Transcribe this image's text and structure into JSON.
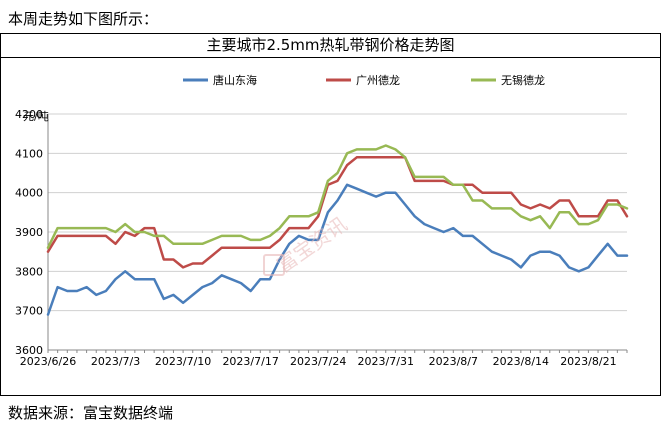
{
  "intro_text": "本周走势如下图所示：",
  "source_text": "数据来源：富宝数据终端",
  "watermark_text": "富宝资讯",
  "chart_data": {
    "type": "line",
    "title": "主要城市2.5mm热轧带钢价格走势图",
    "unit_label": "元/吨",
    "ylim": [
      3600,
      4200
    ],
    "yticks": [
      3600,
      3700,
      3800,
      3900,
      4000,
      4100,
      4200
    ],
    "grid": true,
    "legend_position": "top",
    "x_tick_labels": [
      "2023/6/26",
      "2023/7/3",
      "2023/7/10",
      "2023/7/17",
      "2023/7/24",
      "2023/7/31",
      "2023/8/7",
      "2023/8/14",
      "2023/8/21"
    ],
    "x_tick_positions": [
      0,
      7,
      14,
      21,
      28,
      35,
      42,
      49,
      56
    ],
    "x": [
      0,
      1,
      2,
      3,
      4,
      5,
      6,
      7,
      8,
      9,
      10,
      11,
      12,
      13,
      14,
      15,
      16,
      17,
      18,
      19,
      20,
      21,
      22,
      23,
      24,
      25,
      26,
      27,
      28,
      29,
      30,
      31,
      32,
      33,
      34,
      35,
      36,
      37,
      38,
      39,
      40,
      41,
      42,
      43,
      44,
      45,
      46,
      47,
      48,
      49,
      50,
      51,
      52,
      53,
      54,
      55,
      56,
      57,
      58,
      59,
      60
    ],
    "series": [
      {
        "name": "唐山东海",
        "color": "#4a7ebb",
        "values": [
          3690,
          3760,
          3750,
          3750,
          3760,
          3740,
          3750,
          3780,
          3800,
          3780,
          3780,
          3780,
          3730,
          3740,
          3720,
          3740,
          3760,
          3770,
          3790,
          3780,
          3770,
          3750,
          3780,
          3780,
          3830,
          3870,
          3890,
          3880,
          3880,
          3950,
          3980,
          4020,
          4010,
          4000,
          3990,
          4000,
          4000,
          3970,
          3940,
          3920,
          3910,
          3900,
          3910,
          3890,
          3890,
          3870,
          3850,
          3840,
          3830,
          3810,
          3840,
          3850,
          3850,
          3840,
          3810,
          3800,
          3810,
          3840,
          3870,
          3840,
          3840
        ]
      },
      {
        "name": "广州德龙",
        "color": "#be4b48",
        "values": [
          3850,
          3890,
          3890,
          3890,
          3890,
          3890,
          3890,
          3870,
          3900,
          3890,
          3910,
          3910,
          3830,
          3830,
          3810,
          3820,
          3820,
          3840,
          3860,
          3860,
          3860,
          3860,
          3860,
          3860,
          3880,
          3910,
          3910,
          3910,
          3940,
          4020,
          4030,
          4070,
          4090,
          4090,
          4090,
          4090,
          4090,
          4090,
          4030,
          4030,
          4030,
          4030,
          4020,
          4020,
          4020,
          4000,
          4000,
          4000,
          4000,
          3970,
          3960,
          3970,
          3960,
          3980,
          3980,
          3940,
          3940,
          3940,
          3980,
          3980,
          3940
        ]
      },
      {
        "name": "无锡德龙",
        "color": "#98b954",
        "values": [
          3860,
          3910,
          3910,
          3910,
          3910,
          3910,
          3910,
          3900,
          3920,
          3900,
          3900,
          3890,
          3890,
          3870,
          3870,
          3870,
          3870,
          3880,
          3890,
          3890,
          3890,
          3880,
          3880,
          3890,
          3910,
          3940,
          3940,
          3940,
          3950,
          4030,
          4050,
          4100,
          4110,
          4110,
          4110,
          4120,
          4110,
          4090,
          4040,
          4040,
          4040,
          4040,
          4020,
          4020,
          3980,
          3980,
          3960,
          3960,
          3960,
          3940,
          3930,
          3940,
          3910,
          3950,
          3950,
          3920,
          3920,
          3930,
          3970,
          3970,
          3960
        ]
      }
    ]
  }
}
